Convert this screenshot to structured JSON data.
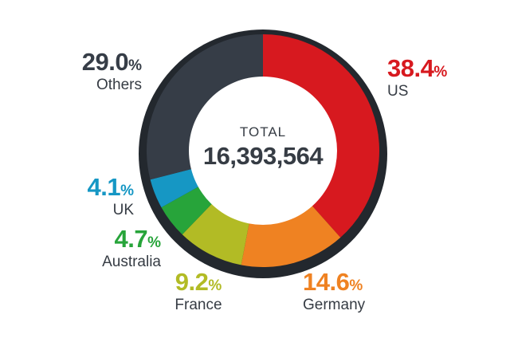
{
  "chart_data": {
    "type": "pie",
    "donut": true,
    "direction": "clockwise",
    "start_angle_deg": 0,
    "center_label": "TOTAL",
    "center_value": "16,393,564",
    "percent_sign": "%",
    "border_color": "#23282E",
    "inner_color": "#FFFFFF",
    "text_color": "#363C44",
    "segments": [
      {
        "label": "US",
        "value": 38.4,
        "display": "38.4",
        "color": "#D7191F"
      },
      {
        "label": "Germany",
        "value": 14.6,
        "display": "14.6",
        "color": "#EF8222"
      },
      {
        "label": "France",
        "value": 9.2,
        "display": "9.2",
        "color": "#B2BB25"
      },
      {
        "label": "Australia",
        "value": 4.7,
        "display": "4.7",
        "color": "#27A43A"
      },
      {
        "label": "UK",
        "value": 4.1,
        "display": "4.1",
        "color": "#1697C4"
      },
      {
        "label": "Others",
        "value": 29.0,
        "display": "29.0",
        "color": "#363D47"
      }
    ]
  }
}
